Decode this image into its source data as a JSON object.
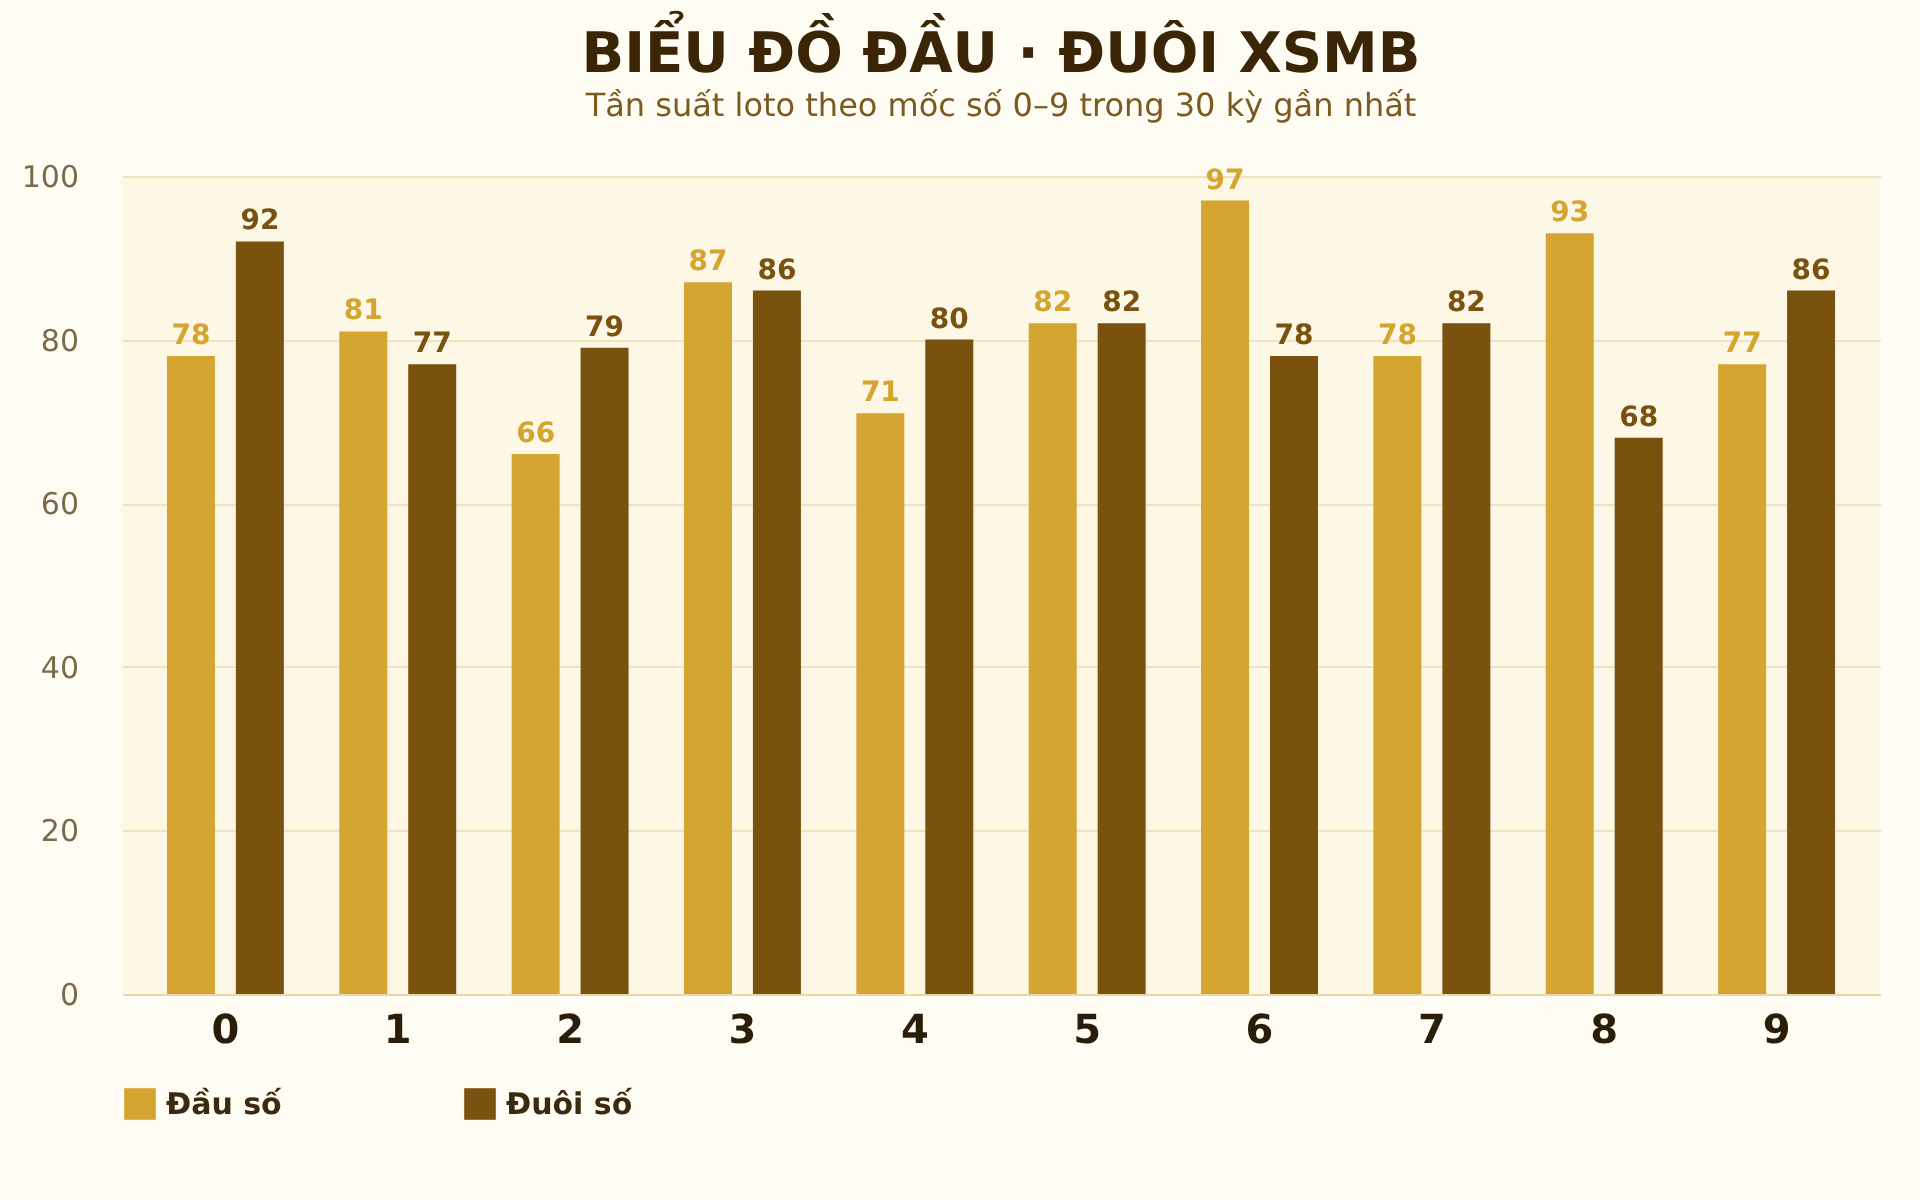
{
  "chart_data": {
    "type": "bar",
    "title": "BIỂU ĐỒ ĐẦU · ĐUÔI XSMB",
    "subtitle": "Tần suất loto theo mốc số 0–9 trong 30 kỳ gần nhất",
    "categories": [
      "0",
      "1",
      "2",
      "3",
      "4",
      "5",
      "6",
      "7",
      "8",
      "9"
    ],
    "series": [
      {
        "name": "Đầu số",
        "color": "#d4a531",
        "values": [
          78,
          81,
          66,
          87,
          71,
          82,
          97,
          78,
          93,
          77
        ]
      },
      {
        "name": "Đuôi số",
        "color": "#7a5210",
        "values": [
          92,
          77,
          79,
          86,
          80,
          82,
          78,
          82,
          68,
          86
        ]
      }
    ],
    "ylim": [
      0,
      100
    ],
    "yticks": [
      0,
      20,
      40,
      60,
      80,
      100
    ],
    "grid": "y",
    "legend": "bottom",
    "data_labels": true
  }
}
